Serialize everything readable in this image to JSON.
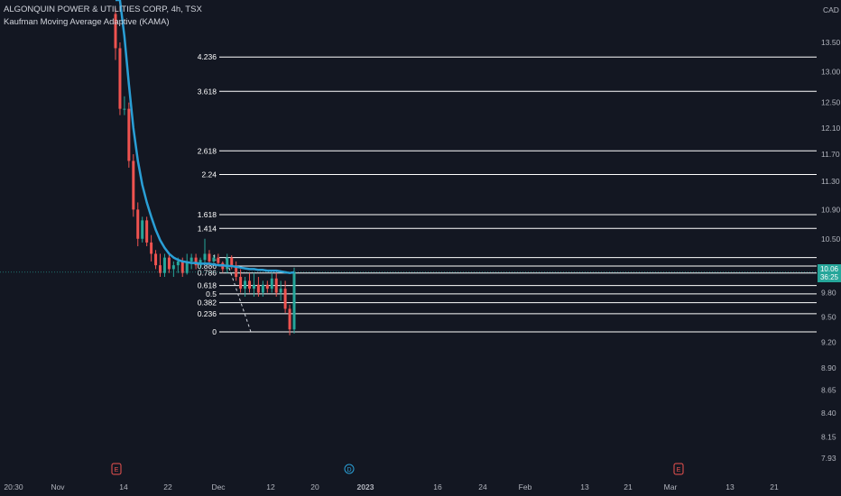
{
  "header": {
    "symbol_line": "ALGONQUIN POWER & UTILITIES CORP, 4h, TSX",
    "indicator_line": "Kaufman Moving Average Adaptive (KAMA)"
  },
  "currency": "CAD",
  "price_tag": {
    "price": "10.06",
    "countdown": "36:25"
  },
  "colors": {
    "background": "#131722",
    "up": "#26a69a",
    "down": "#ef5350",
    "kama": "#2a9fd6",
    "fib_line": "#ffffff",
    "grid_axis_text": "#b2b5be"
  },
  "chart_data": {
    "type": "candlestick",
    "title": "ALGONQUIN POWER & UTILITIES CORP, 4h, TSX",
    "y_axis": {
      "scale": "log",
      "ticks": [
        "13.50",
        "13.00",
        "12.50",
        "12.10",
        "11.70",
        "11.30",
        "10.90",
        "10.50",
        "10.10",
        "9.80",
        "9.50",
        "9.20",
        "8.90",
        "8.65",
        "8.40",
        "8.15",
        "7.93"
      ],
      "range": [
        7.85,
        14.1
      ]
    },
    "x_axis": {
      "ticks": [
        "20:30",
        "Nov",
        "14",
        "22",
        "Dec",
        "12",
        "20",
        "2023",
        "16",
        "24",
        "Feb",
        "13",
        "21",
        "Mar",
        "13",
        "21"
      ]
    },
    "candles": [
      {
        "o": 14.0,
        "h": 14.1,
        "l": 13.2,
        "c": 13.4
      },
      {
        "o": 13.4,
        "h": 13.5,
        "l": 12.3,
        "c": 12.4
      },
      {
        "o": 12.4,
        "h": 12.6,
        "l": 12.3,
        "c": 12.4
      },
      {
        "o": 12.4,
        "h": 12.5,
        "l": 11.5,
        "c": 11.6
      },
      {
        "o": 11.6,
        "h": 11.7,
        "l": 10.8,
        "c": 10.9
      },
      {
        "o": 10.9,
        "h": 11.0,
        "l": 10.4,
        "c": 10.5
      },
      {
        "o": 10.5,
        "h": 10.8,
        "l": 10.45,
        "c": 10.75
      },
      {
        "o": 10.75,
        "h": 10.8,
        "l": 10.4,
        "c": 10.45
      },
      {
        "o": 10.45,
        "h": 10.55,
        "l": 10.2,
        "c": 10.3
      },
      {
        "o": 10.3,
        "h": 10.35,
        "l": 10.1,
        "c": 10.15
      },
      {
        "o": 10.15,
        "h": 10.3,
        "l": 10.0,
        "c": 10.05
      },
      {
        "o": 10.05,
        "h": 10.3,
        "l": 10.0,
        "c": 10.25
      },
      {
        "o": 10.25,
        "h": 10.3,
        "l": 10.05,
        "c": 10.1
      },
      {
        "o": 10.1,
        "h": 10.2,
        "l": 10.0,
        "c": 10.15
      },
      {
        "o": 10.15,
        "h": 10.25,
        "l": 10.05,
        "c": 10.2
      },
      {
        "o": 10.2,
        "h": 10.25,
        "l": 10.0,
        "c": 10.05
      },
      {
        "o": 10.05,
        "h": 10.3,
        "l": 10.03,
        "c": 10.2
      },
      {
        "o": 10.2,
        "h": 10.3,
        "l": 10.1,
        "c": 10.25
      },
      {
        "o": 10.25,
        "h": 10.3,
        "l": 10.1,
        "c": 10.15
      },
      {
        "o": 10.15,
        "h": 10.25,
        "l": 10.1,
        "c": 10.22
      },
      {
        "o": 10.22,
        "h": 10.5,
        "l": 10.18,
        "c": 10.3
      },
      {
        "o": 10.3,
        "h": 10.35,
        "l": 10.15,
        "c": 10.2
      },
      {
        "o": 10.2,
        "h": 10.28,
        "l": 10.15,
        "c": 10.25
      },
      {
        "o": 10.25,
        "h": 10.3,
        "l": 10.15,
        "c": 10.18
      },
      {
        "o": 10.18,
        "h": 10.2,
        "l": 10.05,
        "c": 10.1
      },
      {
        "o": 10.1,
        "h": 10.3,
        "l": 10.05,
        "c": 10.25
      },
      {
        "o": 10.25,
        "h": 10.28,
        "l": 10.1,
        "c": 10.15
      },
      {
        "o": 10.15,
        "h": 10.2,
        "l": 9.95,
        "c": 10.0
      },
      {
        "o": 10.0,
        "h": 10.1,
        "l": 9.8,
        "c": 9.85
      },
      {
        "o": 9.85,
        "h": 10.0,
        "l": 9.75,
        "c": 9.95
      },
      {
        "o": 9.95,
        "h": 10.05,
        "l": 9.8,
        "c": 9.85
      },
      {
        "o": 9.85,
        "h": 10.05,
        "l": 9.75,
        "c": 9.9
      },
      {
        "o": 9.9,
        "h": 10.0,
        "l": 9.75,
        "c": 9.8
      },
      {
        "o": 9.8,
        "h": 9.95,
        "l": 9.75,
        "c": 9.9
      },
      {
        "o": 9.9,
        "h": 9.95,
        "l": 9.8,
        "c": 9.85
      },
      {
        "o": 9.85,
        "h": 10.05,
        "l": 9.8,
        "c": 9.98
      },
      {
        "o": 9.98,
        "h": 10.05,
        "l": 9.75,
        "c": 9.8
      },
      {
        "o": 9.8,
        "h": 9.95,
        "l": 9.7,
        "c": 9.85
      },
      {
        "o": 9.85,
        "h": 9.95,
        "l": 9.55,
        "c": 9.6
      },
      {
        "o": 9.6,
        "h": 9.65,
        "l": 9.28,
        "c": 9.35
      },
      {
        "o": 9.35,
        "h": 10.12,
        "l": 9.3,
        "c": 10.06
      }
    ],
    "kama": [
      15.5,
      14.6,
      13.6,
      12.8,
      12.1,
      11.6,
      11.25,
      11.0,
      10.8,
      10.62,
      10.48,
      10.38,
      10.3,
      10.25,
      10.22,
      10.2,
      10.19,
      10.18,
      10.18,
      10.17,
      10.17,
      10.17,
      10.16,
      10.15,
      10.15,
      10.14,
      10.14,
      10.13,
      10.12,
      10.11,
      10.1,
      10.1,
      10.09,
      10.09,
      10.08,
      10.08,
      10.08,
      10.07,
      10.06,
      10.05,
      10.06
    ],
    "fibonacci": {
      "anchor_low": 9.32,
      "anchor_high": 10.25,
      "levels": [
        {
          "label": "4.236",
          "value": 13.25
        },
        {
          "label": "3.618",
          "value": 12.68
        },
        {
          "label": "2.618",
          "value": 11.75
        },
        {
          "label": "2.24",
          "value": 11.4
        },
        {
          "label": "1.618",
          "value": 10.83
        },
        {
          "label": "1.414",
          "value": 10.64
        },
        {
          "label": "1",
          "value": 10.25
        },
        {
          "label": "0.886",
          "value": 10.14
        },
        {
          "label": "0.786",
          "value": 10.05
        },
        {
          "label": "0.618",
          "value": 9.89
        },
        {
          "label": "0.5",
          "value": 9.785
        },
        {
          "label": "0.382",
          "value": 9.675
        },
        {
          "label": "0.236",
          "value": 9.54
        },
        {
          "label": "0",
          "value": 9.32
        }
      ]
    },
    "event_markers": [
      {
        "label": "E",
        "kind": "earnings",
        "at_tick": "14"
      },
      {
        "label": "D",
        "kind": "dividend",
        "at_tick": "20"
      },
      {
        "label": "E",
        "kind": "earnings",
        "at_tick": "Mar"
      }
    ]
  }
}
